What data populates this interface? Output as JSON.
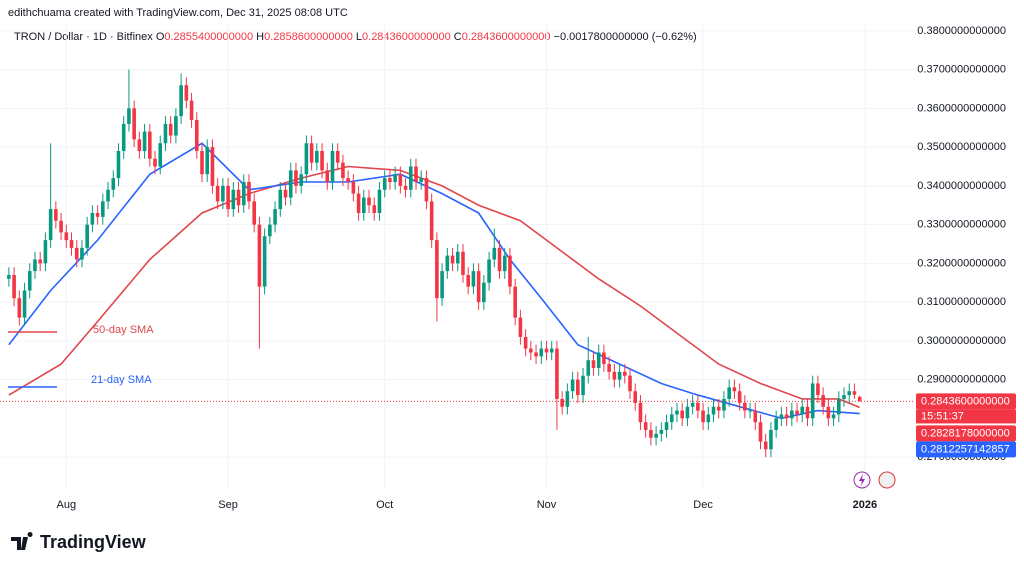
{
  "header": "edithchuama created with TradingView.com, Dec 31, 2025 08:08 UTC",
  "legend": {
    "symbol": "TRON / Dollar · 1D · Bitfinex",
    "fields": [
      "O",
      "0.2855400000000",
      "H",
      "0.2858600000000",
      "L",
      "0.2843600000000",
      "C",
      "0.2843600000000",
      "−0.0017800000000 (−0.62%)"
    ]
  },
  "brand": "TradingView",
  "chart_data": {
    "type": "candlestick",
    "up_color": "#089981",
    "down_color": "#f23645",
    "open": [
      0.316,
      0.317,
      0.311,
      0.306,
      0.313,
      0.318,
      0.321,
      0.32,
      0.326,
      0.334,
      0.331,
      0.328,
      0.326,
      0.324,
      0.321,
      0.324,
      0.33,
      0.333,
      0.332,
      0.336,
      0.339,
      0.342,
      0.349,
      0.356,
      0.36,
      0.352,
      0.349,
      0.354,
      0.347,
      0.345,
      0.351,
      0.356,
      0.353,
      0.358,
      0.366,
      0.362,
      0.357,
      0.349,
      0.343,
      0.35,
      0.34,
      0.336,
      0.34,
      0.334,
      0.339,
      0.335,
      0.341,
      0.336,
      0.33,
      0.314,
      0.327,
      0.33,
      0.334,
      0.339,
      0.337,
      0.344,
      0.34,
      0.343,
      0.351,
      0.346,
      0.349,
      0.344,
      0.341,
      0.349,
      0.346,
      0.342,
      0.341,
      0.338,
      0.333,
      0.337,
      0.335,
      0.333,
      0.339,
      0.342,
      0.341,
      0.343,
      0.34,
      0.339,
      0.345,
      0.341,
      0.342,
      0.336,
      0.326,
      0.311,
      0.318,
      0.322,
      0.32,
      0.323,
      0.317,
      0.314,
      0.318,
      0.31,
      0.315,
      0.321,
      0.324,
      0.318,
      0.322,
      0.314,
      0.306,
      0.301,
      0.298,
      0.297,
      0.296,
      0.298,
      0.297,
      0.298,
      0.285,
      0.283,
      0.287,
      0.29,
      0.286,
      0.291,
      0.295,
      0.293,
      0.297,
      0.294,
      0.292,
      0.29,
      0.292,
      0.291,
      0.287,
      0.284,
      0.279,
      0.277,
      0.275,
      0.276,
      0.277,
      0.279,
      0.281,
      0.282,
      0.28,
      0.283,
      0.284,
      0.282,
      0.279,
      0.281,
      0.283,
      0.282,
      0.285,
      0.288,
      0.287,
      0.284,
      0.282,
      0.282,
      0.279,
      0.274,
      0.272,
      0.277,
      0.28,
      0.281,
      0.28,
      0.282,
      0.281,
      0.283,
      0.28,
      0.289,
      0.286,
      0.283,
      0.28,
      0.281,
      0.285,
      0.286,
      0.287,
      0.28554
    ],
    "high": [
      0.319,
      0.319,
      0.313,
      0.315,
      0.32,
      0.323,
      0.323,
      0.328,
      0.351,
      0.336,
      0.333,
      0.33,
      0.328,
      0.326,
      0.326,
      0.332,
      0.335,
      0.335,
      0.338,
      0.341,
      0.344,
      0.351,
      0.358,
      0.37,
      0.362,
      0.354,
      0.356,
      0.356,
      0.349,
      0.353,
      0.358,
      0.358,
      0.36,
      0.369,
      0.368,
      0.364,
      0.359,
      0.351,
      0.352,
      0.352,
      0.342,
      0.342,
      0.342,
      0.341,
      0.341,
      0.343,
      0.343,
      0.338,
      0.332,
      0.329,
      0.332,
      0.336,
      0.341,
      0.341,
      0.346,
      0.346,
      0.345,
      0.353,
      0.353,
      0.351,
      0.351,
      0.346,
      0.351,
      0.351,
      0.348,
      0.344,
      0.343,
      0.34,
      0.339,
      0.339,
      0.337,
      0.341,
      0.344,
      0.344,
      0.345,
      0.345,
      0.342,
      0.347,
      0.347,
      0.344,
      0.344,
      0.338,
      0.328,
      0.32,
      0.324,
      0.324,
      0.325,
      0.325,
      0.319,
      0.32,
      0.32,
      0.317,
      0.323,
      0.329,
      0.326,
      0.324,
      0.324,
      0.316,
      0.308,
      0.303,
      0.3,
      0.299,
      0.3,
      0.3,
      0.3,
      0.3,
      0.287,
      0.289,
      0.292,
      0.292,
      0.293,
      0.301,
      0.297,
      0.299,
      0.299,
      0.296,
      0.294,
      0.294,
      0.294,
      0.293,
      0.289,
      0.286,
      0.281,
      0.279,
      0.278,
      0.279,
      0.281,
      0.283,
      0.284,
      0.284,
      0.285,
      0.286,
      0.286,
      0.284,
      0.283,
      0.285,
      0.285,
      0.287,
      0.29,
      0.29,
      0.289,
      0.286,
      0.284,
      0.284,
      0.281,
      0.276,
      0.279,
      0.282,
      0.283,
      0.283,
      0.284,
      0.284,
      0.285,
      0.285,
      0.291,
      0.291,
      0.288,
      0.285,
      0.283,
      0.287,
      0.288,
      0.289,
      0.289,
      0.28586
    ],
    "low": [
      0.314,
      0.309,
      0.304,
      0.304,
      0.311,
      0.316,
      0.318,
      0.318,
      0.324,
      0.329,
      0.326,
      0.324,
      0.322,
      0.319,
      0.319,
      0.322,
      0.328,
      0.33,
      0.33,
      0.334,
      0.337,
      0.34,
      0.347,
      0.354,
      0.35,
      0.347,
      0.347,
      0.345,
      0.343,
      0.343,
      0.349,
      0.351,
      0.351,
      0.356,
      0.36,
      0.355,
      0.347,
      0.341,
      0.341,
      0.338,
      0.334,
      0.334,
      0.332,
      0.332,
      0.333,
      0.333,
      0.334,
      0.328,
      0.298,
      0.312,
      0.325,
      0.328,
      0.332,
      0.335,
      0.335,
      0.338,
      0.338,
      0.341,
      0.344,
      0.344,
      0.342,
      0.339,
      0.339,
      0.344,
      0.34,
      0.339,
      0.336,
      0.331,
      0.331,
      0.333,
      0.331,
      0.331,
      0.337,
      0.339,
      0.339,
      0.338,
      0.337,
      0.337,
      0.339,
      0.339,
      0.334,
      0.324,
      0.305,
      0.309,
      0.316,
      0.318,
      0.318,
      0.315,
      0.312,
      0.312,
      0.308,
      0.308,
      0.313,
      0.319,
      0.316,
      0.316,
      0.312,
      0.304,
      0.299,
      0.296,
      0.295,
      0.294,
      0.294,
      0.295,
      0.295,
      0.277,
      0.281,
      0.281,
      0.285,
      0.284,
      0.284,
      0.289,
      0.291,
      0.291,
      0.292,
      0.29,
      0.288,
      0.288,
      0.289,
      0.285,
      0.282,
      0.277,
      0.275,
      0.273,
      0.273,
      0.274,
      0.275,
      0.277,
      0.279,
      0.278,
      0.278,
      0.281,
      0.28,
      0.277,
      0.277,
      0.279,
      0.28,
      0.28,
      0.283,
      0.285,
      0.282,
      0.28,
      0.28,
      0.277,
      0.272,
      0.27,
      0.27,
      0.275,
      0.278,
      0.278,
      0.278,
      0.279,
      0.279,
      0.278,
      0.278,
      0.284,
      0.281,
      0.278,
      0.278,
      0.279,
      0.283,
      0.284,
      0.285,
      0.28436
    ],
    "close": [
      0.317,
      0.311,
      0.306,
      0.313,
      0.318,
      0.321,
      0.32,
      0.326,
      0.334,
      0.331,
      0.328,
      0.326,
      0.324,
      0.321,
      0.324,
      0.33,
      0.333,
      0.332,
      0.336,
      0.339,
      0.342,
      0.349,
      0.356,
      0.36,
      0.352,
      0.349,
      0.354,
      0.347,
      0.345,
      0.351,
      0.356,
      0.353,
      0.358,
      0.366,
      0.362,
      0.357,
      0.349,
      0.343,
      0.35,
      0.34,
      0.336,
      0.34,
      0.334,
      0.339,
      0.335,
      0.341,
      0.336,
      0.33,
      0.314,
      0.327,
      0.33,
      0.334,
      0.339,
      0.337,
      0.344,
      0.34,
      0.343,
      0.351,
      0.346,
      0.349,
      0.344,
      0.341,
      0.349,
      0.346,
      0.342,
      0.341,
      0.338,
      0.333,
      0.337,
      0.335,
      0.333,
      0.339,
      0.342,
      0.341,
      0.343,
      0.34,
      0.339,
      0.345,
      0.341,
      0.342,
      0.336,
      0.326,
      0.311,
      0.318,
      0.322,
      0.32,
      0.323,
      0.317,
      0.314,
      0.318,
      0.31,
      0.315,
      0.321,
      0.324,
      0.318,
      0.322,
      0.314,
      0.306,
      0.301,
      0.298,
      0.297,
      0.296,
      0.298,
      0.297,
      0.298,
      0.285,
      0.283,
      0.287,
      0.29,
      0.286,
      0.291,
      0.295,
      0.293,
      0.297,
      0.294,
      0.292,
      0.29,
      0.292,
      0.291,
      0.287,
      0.284,
      0.279,
      0.277,
      0.275,
      0.276,
      0.277,
      0.279,
      0.281,
      0.282,
      0.28,
      0.283,
      0.284,
      0.282,
      0.279,
      0.281,
      0.283,
      0.282,
      0.285,
      0.288,
      0.287,
      0.284,
      0.282,
      0.282,
      0.279,
      0.274,
      0.272,
      0.277,
      0.28,
      0.281,
      0.28,
      0.282,
      0.281,
      0.283,
      0.28,
      0.289,
      0.286,
      0.283,
      0.28,
      0.281,
      0.285,
      0.286,
      0.287,
      0.2861,
      0.28436
    ],
    "series": [
      {
        "name": "50-day SMA",
        "color": "#e0474c",
        "x": [
          0,
          10,
          17,
          27,
          37,
          46,
          56,
          65,
          75,
          83,
          90,
          98,
          106,
          113,
          121,
          129,
          136,
          144,
          152,
          159,
          163
        ],
        "values": [
          0.286,
          0.294,
          0.305,
          0.321,
          0.333,
          0.338,
          0.342,
          0.345,
          0.344,
          0.34,
          0.335,
          0.331,
          0.323,
          0.316,
          0.309,
          0.301,
          0.294,
          0.289,
          0.285,
          0.285,
          0.28282
        ]
      },
      {
        "name": "21-day SMA",
        "color": "#2962ff",
        "x": [
          0,
          8,
          17,
          27,
          37,
          46,
          56,
          65,
          75,
          83,
          90,
          96,
          102,
          109,
          117,
          125,
          132,
          140,
          148,
          155,
          163
        ],
        "values": [
          0.299,
          0.313,
          0.326,
          0.343,
          0.351,
          0.339,
          0.341,
          0.341,
          0.343,
          0.338,
          0.333,
          0.321,
          0.311,
          0.299,
          0.294,
          0.289,
          0.286,
          0.283,
          0.28,
          0.282,
          0.28123
        ]
      }
    ],
    "xlim": [
      -1.7,
      173.6
    ],
    "xticks": [
      {
        "value": 11,
        "label": "Aug"
      },
      {
        "value": 42,
        "label": "Sep"
      },
      {
        "value": 72,
        "label": "Oct"
      },
      {
        "value": 103,
        "label": "Nov"
      },
      {
        "value": 133,
        "label": "Dec"
      },
      {
        "value": 164,
        "label": "2026"
      }
    ],
    "ylim": [
      0.2615,
      0.3823
    ],
    "yticks": [
      {
        "value": 0.27,
        "label": "0.2700000000000"
      },
      {
        "value": 0.29,
        "label": "0.2900000000000"
      },
      {
        "value": 0.3,
        "label": "0.3000000000000"
      },
      {
        "value": 0.31,
        "label": "0.3100000000000"
      },
      {
        "value": 0.32,
        "label": "0.3200000000000"
      },
      {
        "value": 0.33,
        "label": "0.3300000000000"
      },
      {
        "value": 0.34,
        "label": "0.3400000000000"
      },
      {
        "value": 0.35,
        "label": "0.3500000000000"
      },
      {
        "value": 0.36,
        "label": "0.3600000000000"
      },
      {
        "value": 0.37,
        "label": "0.3700000000000"
      },
      {
        "value": 0.38,
        "label": "0.3800000000000"
      }
    ],
    "price_labels": [
      {
        "value": 0.28436,
        "label": "0.2843600000000",
        "color": "#f23645"
      },
      {
        "value": 0.28282,
        "label": "0.2828178000000",
        "color": "#f23645"
      },
      {
        "value": 0.28123,
        "label": "0.2812257142857",
        "color": "#2962ff"
      }
    ],
    "countdown": "15:51:37",
    "grid": true
  }
}
